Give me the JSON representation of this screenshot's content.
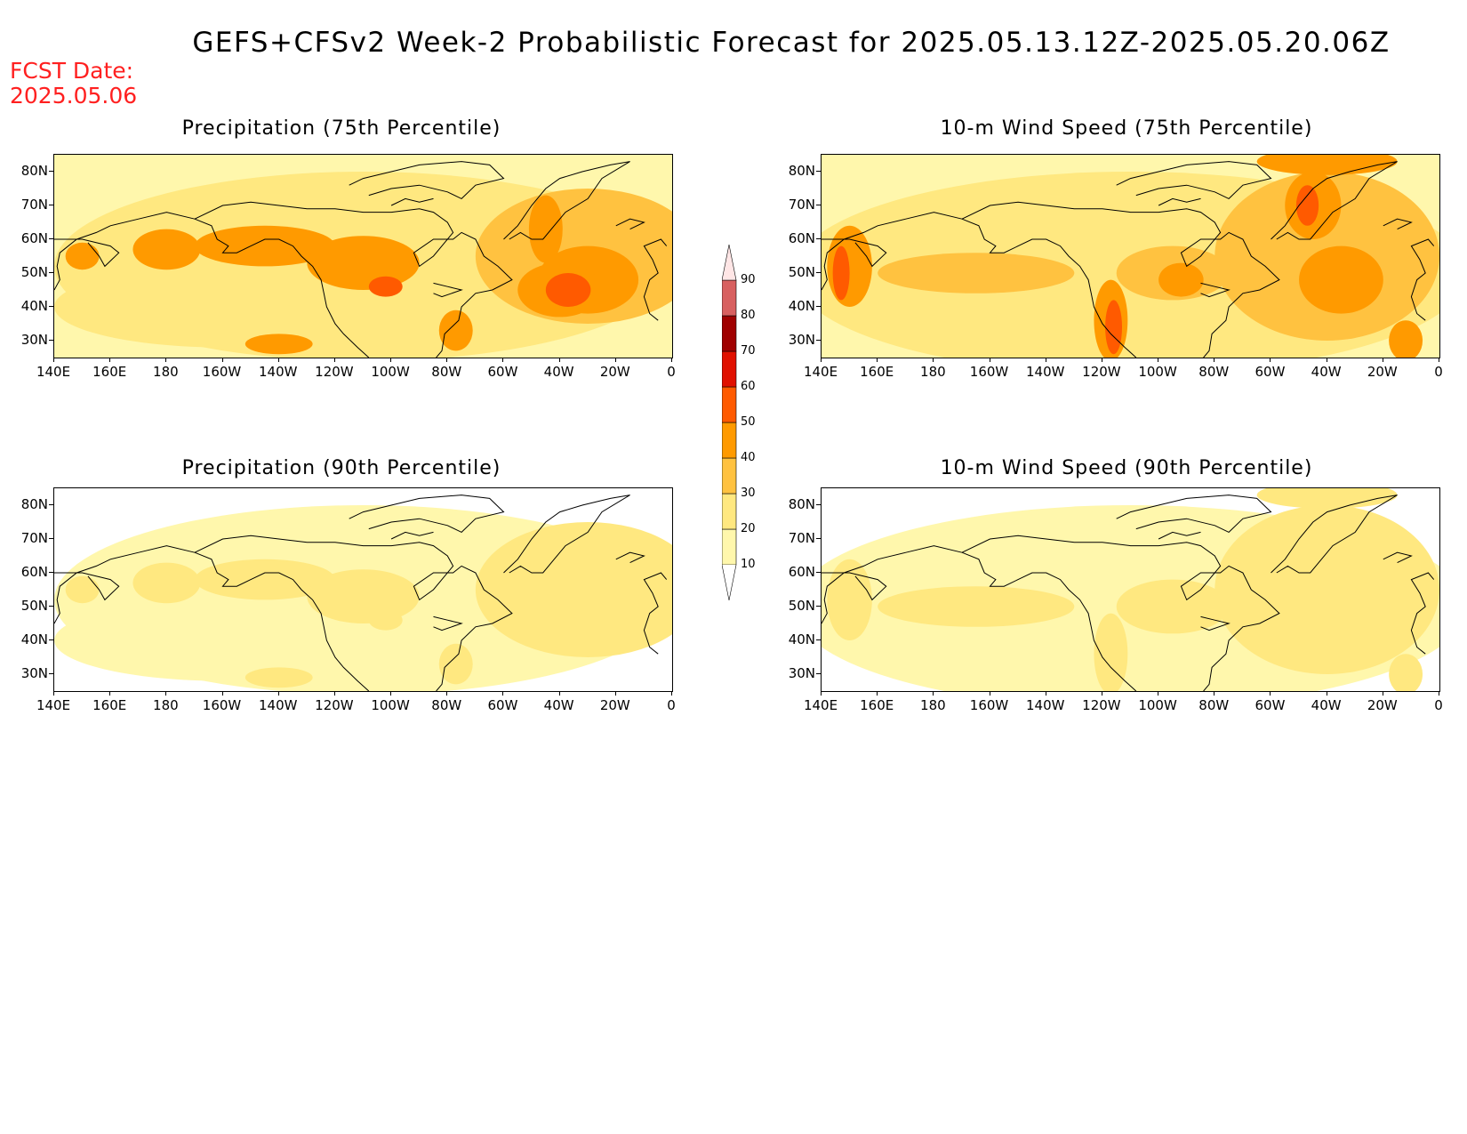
{
  "figure": {
    "title": "GEFS+CFSv2 Week-2 Probabilistic Forecast for 2025.05.13.12Z-2025.05.20.06Z",
    "fcst_label": "FCST Date:",
    "fcst_date": "2025.05.06"
  },
  "panels": [
    {
      "id": "precip-75",
      "title": "Precipitation (75th Percentile)",
      "intensity": 1.0,
      "pattern": "precip"
    },
    {
      "id": "wind-75",
      "title": "10-m Wind Speed (75th Percentile)",
      "intensity": 1.0,
      "pattern": "wind"
    },
    {
      "id": "precip-90",
      "title": "Precipitation (90th Percentile)",
      "intensity": 0.35,
      "pattern": "precip"
    },
    {
      "id": "wind-90",
      "title": "10-m Wind Speed (90th Percentile)",
      "intensity": 0.35,
      "pattern": "wind"
    }
  ],
  "axes": {
    "y_ticks": [
      "80N",
      "70N",
      "60N",
      "50N",
      "40N",
      "30N"
    ],
    "x_ticks": [
      "140E",
      "160E",
      "180",
      "160W",
      "140W",
      "120W",
      "100W",
      "80W",
      "60W",
      "40W",
      "20W",
      "0"
    ],
    "lat_range": [
      25,
      85
    ],
    "lon_range": [
      140,
      360
    ]
  },
  "colorbar": {
    "levels": [
      "10",
      "20",
      "30",
      "40",
      "50",
      "60",
      "70",
      "80",
      "90"
    ],
    "colors": [
      "#fff7ac",
      "#ffe880",
      "#ffc240",
      "#ff9a00",
      "#ff5a00",
      "#e01000",
      "#a00000",
      "#d86060",
      "#f3a3a8",
      "#ffe6e6"
    ]
  }
}
